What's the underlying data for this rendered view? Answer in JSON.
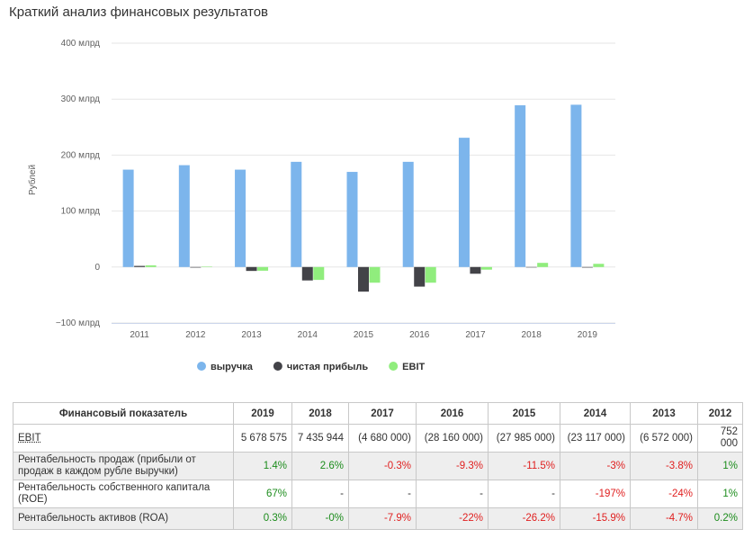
{
  "title": "Краткий анализ финансовых результатов",
  "chart_data": {
    "type": "bar",
    "categories": [
      "2011",
      "2012",
      "2013",
      "2014",
      "2015",
      "2016",
      "2017",
      "2018",
      "2019"
    ],
    "series": [
      {
        "name": "выручка",
        "color": "#7cb5ec",
        "values": [
          174,
          182,
          174,
          188,
          170,
          188,
          231,
          289,
          290
        ]
      },
      {
        "name": "чистая прибыль",
        "color": "#434348",
        "values": [
          2,
          -1,
          -7,
          -24,
          -44,
          -35,
          -12,
          0,
          -1
        ]
      },
      {
        "name": "EBIT",
        "color": "#90ed7d",
        "values": [
          3,
          0.75,
          -6.6,
          -23,
          -28,
          -28,
          -4.7,
          7.4,
          5.7
        ]
      }
    ],
    "ylabel": "Рублей",
    "ylim": [
      -100,
      400
    ],
    "yticks": [
      400,
      300,
      200,
      100,
      0,
      -100
    ],
    "ytick_labels": [
      "400 млрд",
      "300 млрд",
      "200 млрд",
      "100 млрд",
      "0",
      "−100 млрд"
    ],
    "unit": "млрд",
    "grid": true,
    "legend_position": "bottom-center"
  },
  "table": {
    "header": [
      "Финансовый показатель",
      "2019",
      "2018",
      "2017",
      "2016",
      "2015",
      "2014",
      "2013",
      "2012"
    ],
    "rows": [
      {
        "label": "EBIT",
        "cells": [
          {
            "v": "5 678 575",
            "c": ""
          },
          {
            "v": "7 435 944",
            "c": ""
          },
          {
            "v": "(4 680 000)",
            "c": ""
          },
          {
            "v": "(28 160 000)",
            "c": ""
          },
          {
            "v": "(27 985 000)",
            "c": ""
          },
          {
            "v": "(23 117 000)",
            "c": ""
          },
          {
            "v": "(6 572 000)",
            "c": ""
          },
          {
            "v": "752 000",
            "c": ""
          }
        ]
      },
      {
        "label": "Рентабельность продаж (прибыли от продаж в каждом рубле выручки)",
        "cells": [
          {
            "v": "1.4%",
            "c": "pos"
          },
          {
            "v": "2.6%",
            "c": "pos"
          },
          {
            "v": "-0.3%",
            "c": "neg"
          },
          {
            "v": "-9.3%",
            "c": "neg"
          },
          {
            "v": "-11.5%",
            "c": "neg"
          },
          {
            "v": "-3%",
            "c": "neg"
          },
          {
            "v": "-3.8%",
            "c": "neg"
          },
          {
            "v": "1%",
            "c": "pos"
          }
        ]
      },
      {
        "label": "Рентабельность собственного капитала (ROE)",
        "cells": [
          {
            "v": "67%",
            "c": "pos"
          },
          {
            "v": "-",
            "c": ""
          },
          {
            "v": "-",
            "c": ""
          },
          {
            "v": "-",
            "c": ""
          },
          {
            "v": "-",
            "c": ""
          },
          {
            "v": "-197%",
            "c": "neg"
          },
          {
            "v": "-24%",
            "c": "neg"
          },
          {
            "v": "1%",
            "c": "pos"
          }
        ]
      },
      {
        "label": "Рентабельность активов (ROA)",
        "cells": [
          {
            "v": "0.3%",
            "c": "pos"
          },
          {
            "v": "-0%",
            "c": "pos"
          },
          {
            "v": "-7.9%",
            "c": "neg"
          },
          {
            "v": "-22%",
            "c": "neg"
          },
          {
            "v": "-26.2%",
            "c": "neg"
          },
          {
            "v": "-15.9%",
            "c": "neg"
          },
          {
            "v": "-4.7%",
            "c": "neg"
          },
          {
            "v": "0.2%",
            "c": "pos"
          }
        ]
      }
    ]
  }
}
